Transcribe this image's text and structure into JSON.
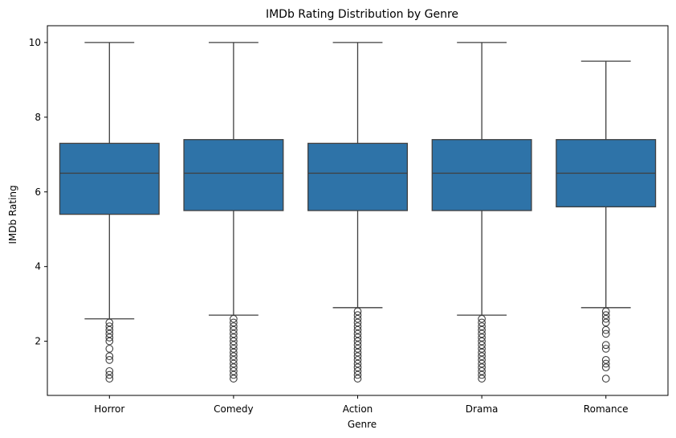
{
  "chart_data": {
    "type": "box",
    "title": "IMDb Rating Distribution by Genre",
    "xlabel": "Genre",
    "ylabel": "IMDb Rating",
    "ylim": [
      0.55,
      10.45
    ],
    "yticks": [
      2,
      4,
      6,
      8,
      10
    ],
    "grid": false,
    "legend": "none",
    "box_color": "#2e73a8",
    "line_color": "#3f3f3f",
    "categories": [
      "Horror",
      "Comedy",
      "Action",
      "Drama",
      "Romance"
    ],
    "boxes": [
      {
        "whisker_low": 2.6,
        "q1": 5.4,
        "median": 6.5,
        "q3": 7.3,
        "whisker_high": 10.0,
        "outliers": [
          1.0,
          1.1,
          1.2,
          1.5,
          1.6,
          1.8,
          2.0,
          2.1,
          2.2,
          2.3,
          2.4,
          2.5
        ]
      },
      {
        "whisker_low": 2.7,
        "q1": 5.5,
        "median": 6.5,
        "q3": 7.4,
        "whisker_high": 10.0,
        "outliers": [
          1.0,
          1.1,
          1.2,
          1.3,
          1.4,
          1.5,
          1.6,
          1.7,
          1.8,
          1.9,
          2.0,
          2.1,
          2.2,
          2.3,
          2.4,
          2.5,
          2.6
        ]
      },
      {
        "whisker_low": 2.9,
        "q1": 5.5,
        "median": 6.5,
        "q3": 7.3,
        "whisker_high": 10.0,
        "outliers": [
          1.0,
          1.1,
          1.2,
          1.3,
          1.4,
          1.5,
          1.6,
          1.7,
          1.8,
          1.9,
          2.0,
          2.1,
          2.2,
          2.3,
          2.4,
          2.5,
          2.6,
          2.7,
          2.8
        ]
      },
      {
        "whisker_low": 2.7,
        "q1": 5.5,
        "median": 6.5,
        "q3": 7.4,
        "whisker_high": 10.0,
        "outliers": [
          1.0,
          1.1,
          1.2,
          1.3,
          1.4,
          1.5,
          1.6,
          1.7,
          1.8,
          1.9,
          2.0,
          2.1,
          2.2,
          2.3,
          2.4,
          2.5,
          2.6
        ]
      },
      {
        "whisker_low": 2.9,
        "q1": 5.6,
        "median": 6.5,
        "q3": 7.4,
        "whisker_high": 9.5,
        "outliers": [
          1.0,
          1.3,
          1.4,
          1.5,
          1.8,
          1.9,
          2.2,
          2.3,
          2.5,
          2.6,
          2.7,
          2.8
        ]
      }
    ]
  }
}
